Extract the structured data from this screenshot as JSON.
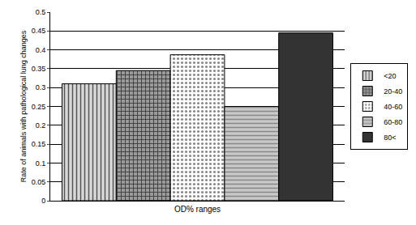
{
  "chart_data": {
    "type": "bar",
    "x_label": "OD% ranges",
    "y_label": "Rate of animals with pathological lung changes",
    "categories": [
      null
    ],
    "series": [
      {
        "name": "<20",
        "color": "#d9d9d9",
        "values": [
          0.31
        ]
      },
      {
        "name": "20-40",
        "color": "#9a9a9a",
        "values": [
          0.345
        ]
      },
      {
        "name": "40-60",
        "color": "#ffffff",
        "values": [
          0.387
        ]
      },
      {
        "name": "60-80",
        "color": "#c8c8c8",
        "values": [
          0.25
        ]
      },
      {
        "name": "80<",
        "color": "#333333",
        "values": [
          0.445
        ]
      }
    ],
    "ylim": [
      0,
      0.5
    ],
    "yticks": [
      0,
      0.05,
      0.1,
      0.15,
      0.2,
      0.25,
      0.3,
      0.35,
      0.4,
      0.45,
      0.5
    ],
    "grid": true,
    "legend": "right",
    "tick_labels": "y"
  }
}
